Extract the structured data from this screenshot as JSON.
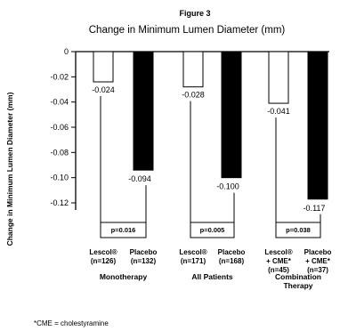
{
  "figure_label": "Figure 3",
  "chart_data": {
    "type": "bar",
    "title": "Change in Minimum Lumen Diameter (mm)",
    "ylabel": "Change in Minimum Lumen Diameter (mm)",
    "ylim": [
      -0.12,
      0
    ],
    "yticks": [
      0,
      -0.02,
      -0.04,
      -0.06,
      -0.08,
      -0.1,
      -0.12
    ],
    "ytick_labels": [
      "0",
      "-0.02",
      "-0.04",
      "-0.06",
      "-0.08",
      "-0.10",
      "-0.12"
    ],
    "groups": [
      {
        "name": "Monotherapy",
        "p_value": "p=0.016",
        "bars": [
          {
            "label": "Lescol® (n=126)",
            "label_lines": [
              "Lescol®",
              "(n=126)"
            ],
            "value": -0.024,
            "value_label": "-0.024",
            "fill": "white"
          },
          {
            "label": "Placebo (n=132)",
            "label_lines": [
              "Placebo",
              "(n=132)"
            ],
            "value": -0.094,
            "value_label": "-0.094",
            "fill": "black"
          }
        ]
      },
      {
        "name": "All Patients",
        "p_value": "p=0.005",
        "bars": [
          {
            "label": "Lescol® (n=171) ",
            "label_lines": [
              "Lescol®",
              "(n=171)"
            ],
            "value": -0.028,
            "value_label": "-0.028",
            "fill": "white"
          },
          {
            "label": "Placebo (n=168)",
            "label_lines": [
              "Placebo",
              "(n=168)"
            ],
            "value": -0.1,
            "value_label": "-0.100",
            "fill": "black"
          }
        ]
      },
      {
        "name": "Combination Therapy",
        "name_lines": [
          "Combination",
          "Therapy"
        ],
        "p_value": "p=0.038",
        "bars": [
          {
            "label": "Lescol® + CME* (n=45)",
            "label_lines": [
              "Lescol®",
              "+ CME*",
              "(n=45)"
            ],
            "value": -0.041,
            "value_label": "-0.041",
            "fill": "white"
          },
          {
            "label": "Placebo + CME* (n=37)",
            "label_lines": [
              "Placebo",
              "+ CME*",
              "(n=37)"
            ],
            "value": -0.117,
            "value_label": "-0.117",
            "fill": "black"
          }
        ]
      }
    ],
    "grid": false,
    "legend": "none"
  },
  "footnote": "*CME = cholestyramine"
}
